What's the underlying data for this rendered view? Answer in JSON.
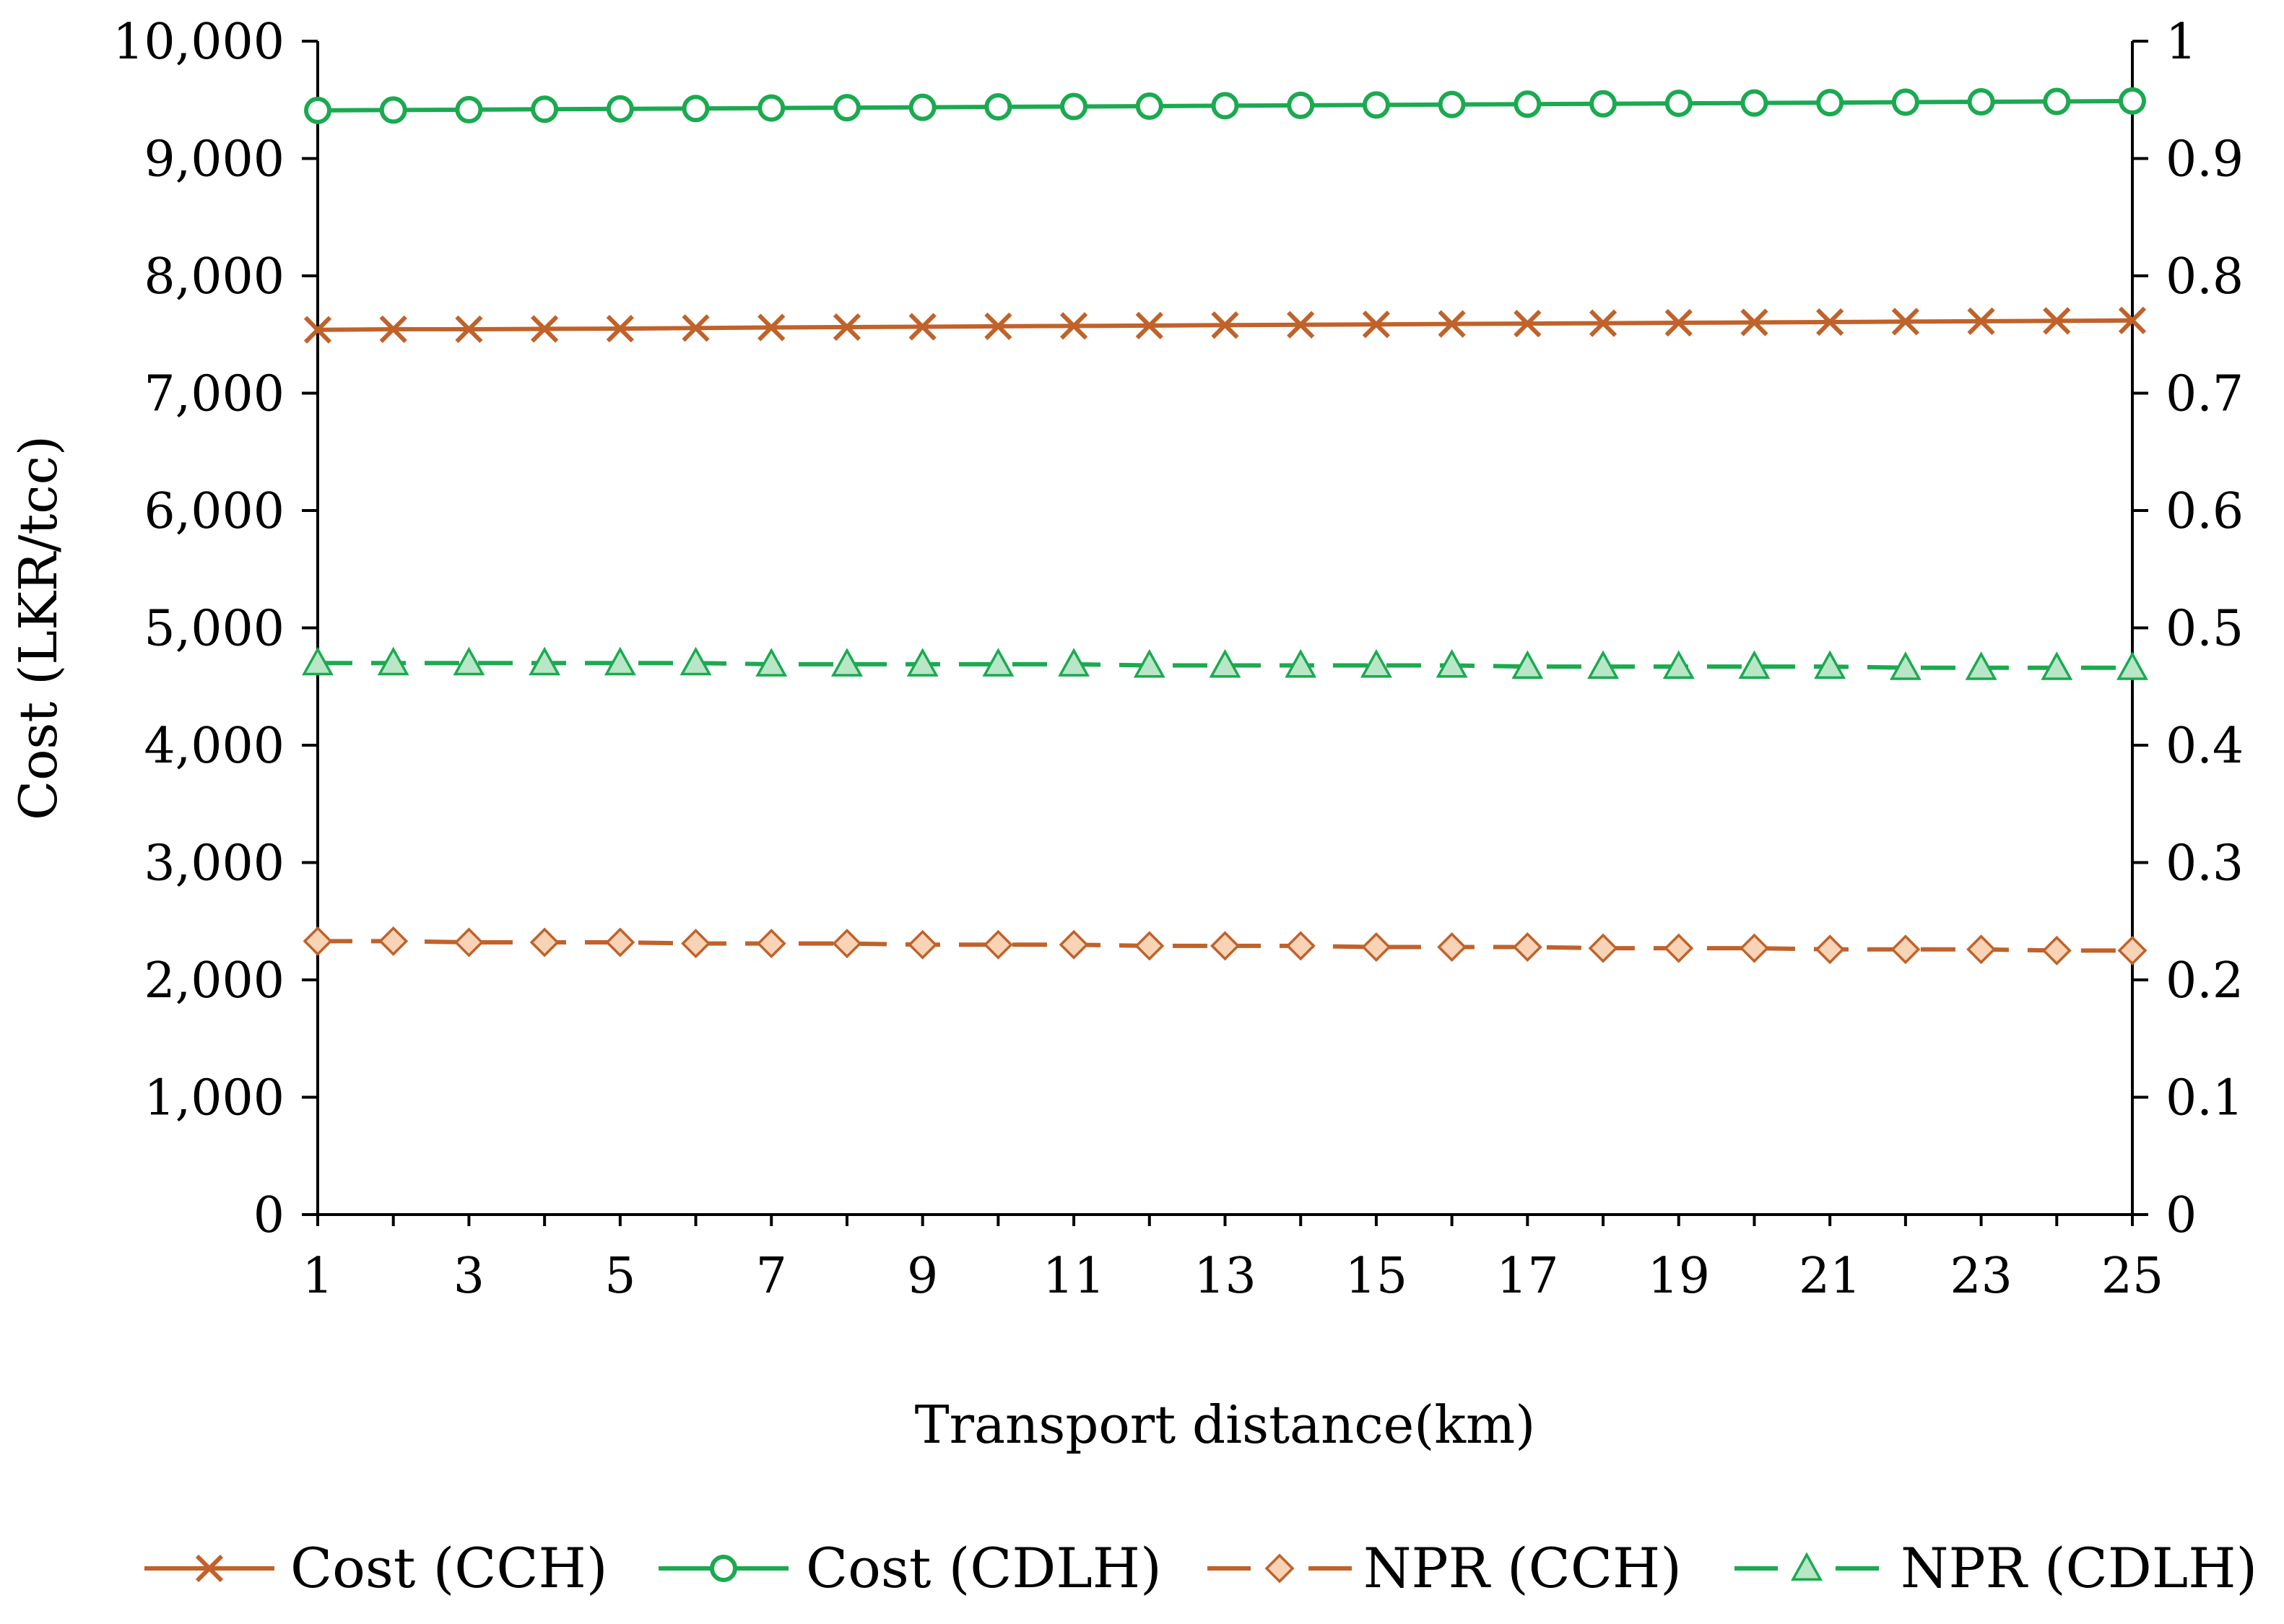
{
  "chart_data": {
    "type": "line",
    "title": "",
    "xlabel": "Transport distance(km)",
    "ylabel": "Cost (LKR/tcc)",
    "y2label": "",
    "x": [
      1,
      2,
      3,
      4,
      5,
      6,
      7,
      8,
      9,
      10,
      11,
      12,
      13,
      14,
      15,
      16,
      17,
      18,
      19,
      20,
      21,
      22,
      23,
      24,
      25
    ],
    "xticks": [
      1,
      3,
      5,
      7,
      9,
      11,
      13,
      15,
      17,
      19,
      21,
      23,
      25
    ],
    "xtick_labels": [
      "1",
      "3",
      "5",
      "7",
      "9",
      "11",
      "13",
      "15",
      "17",
      "19",
      "21",
      "23",
      "25"
    ],
    "xlim": [
      1,
      25
    ],
    "ylim": [
      0,
      10000
    ],
    "y2lim": [
      0,
      1
    ],
    "yticks": [
      0,
      1000,
      2000,
      3000,
      4000,
      5000,
      6000,
      7000,
      8000,
      9000,
      10000
    ],
    "ytick_labels": [
      "0",
      "1,000",
      "2,000",
      "3,000",
      "4,000",
      "5,000",
      "6,000",
      "7,000",
      "8,000",
      "9,000",
      "10,000"
    ],
    "y2ticks": [
      0,
      0.1,
      0.2,
      0.3,
      0.4,
      0.5,
      0.6,
      0.7,
      0.8,
      0.9,
      1
    ],
    "y2tick_labels": [
      "0",
      "0.1",
      "0.2",
      "0.3",
      "0.4",
      "0.5",
      "0.6",
      "0.7",
      "0.8",
      "0.9",
      "1"
    ],
    "grid": false,
    "legend_position": "bottom",
    "series": [
      {
        "name": "Cost (CCH)",
        "axis": "left",
        "color": "#C0622A",
        "line": "solid",
        "marker": "x",
        "values": [
          7540,
          7545,
          7545,
          7548,
          7550,
          7555,
          7560,
          7563,
          7566,
          7570,
          7573,
          7576,
          7580,
          7583,
          7586,
          7590,
          7593,
          7596,
          7600,
          7603,
          7606,
          7610,
          7613,
          7616,
          7620
        ]
      },
      {
        "name": "Cost (CDLH)",
        "axis": "left",
        "color": "#1AAA50",
        "line": "solid",
        "marker": "circle",
        "values": [
          9410,
          9413,
          9416,
          9420,
          9423,
          9426,
          9430,
          9433,
          9436,
          9440,
          9443,
          9446,
          9450,
          9453,
          9456,
          9460,
          9463,
          9466,
          9470,
          9473,
          9476,
          9480,
          9483,
          9486,
          9490
        ]
      },
      {
        "name": "NPR (CCH)",
        "axis": "right",
        "color": "#C0622A",
        "line": "dashed",
        "marker": "diamond",
        "values": [
          0.233,
          0.233,
          0.232,
          0.232,
          0.232,
          0.231,
          0.231,
          0.231,
          0.23,
          0.23,
          0.23,
          0.229,
          0.229,
          0.229,
          0.228,
          0.228,
          0.228,
          0.227,
          0.227,
          0.227,
          0.226,
          0.226,
          0.226,
          0.225,
          0.225
        ]
      },
      {
        "name": "NPR (CDLH)",
        "axis": "right",
        "color": "#1AAA50",
        "line": "dashed",
        "marker": "triangle",
        "values": [
          0.47,
          0.47,
          0.47,
          0.47,
          0.47,
          0.47,
          0.469,
          0.469,
          0.469,
          0.469,
          0.469,
          0.468,
          0.468,
          0.468,
          0.468,
          0.468,
          0.467,
          0.467,
          0.467,
          0.467,
          0.467,
          0.466,
          0.466,
          0.466,
          0.466
        ]
      }
    ]
  }
}
